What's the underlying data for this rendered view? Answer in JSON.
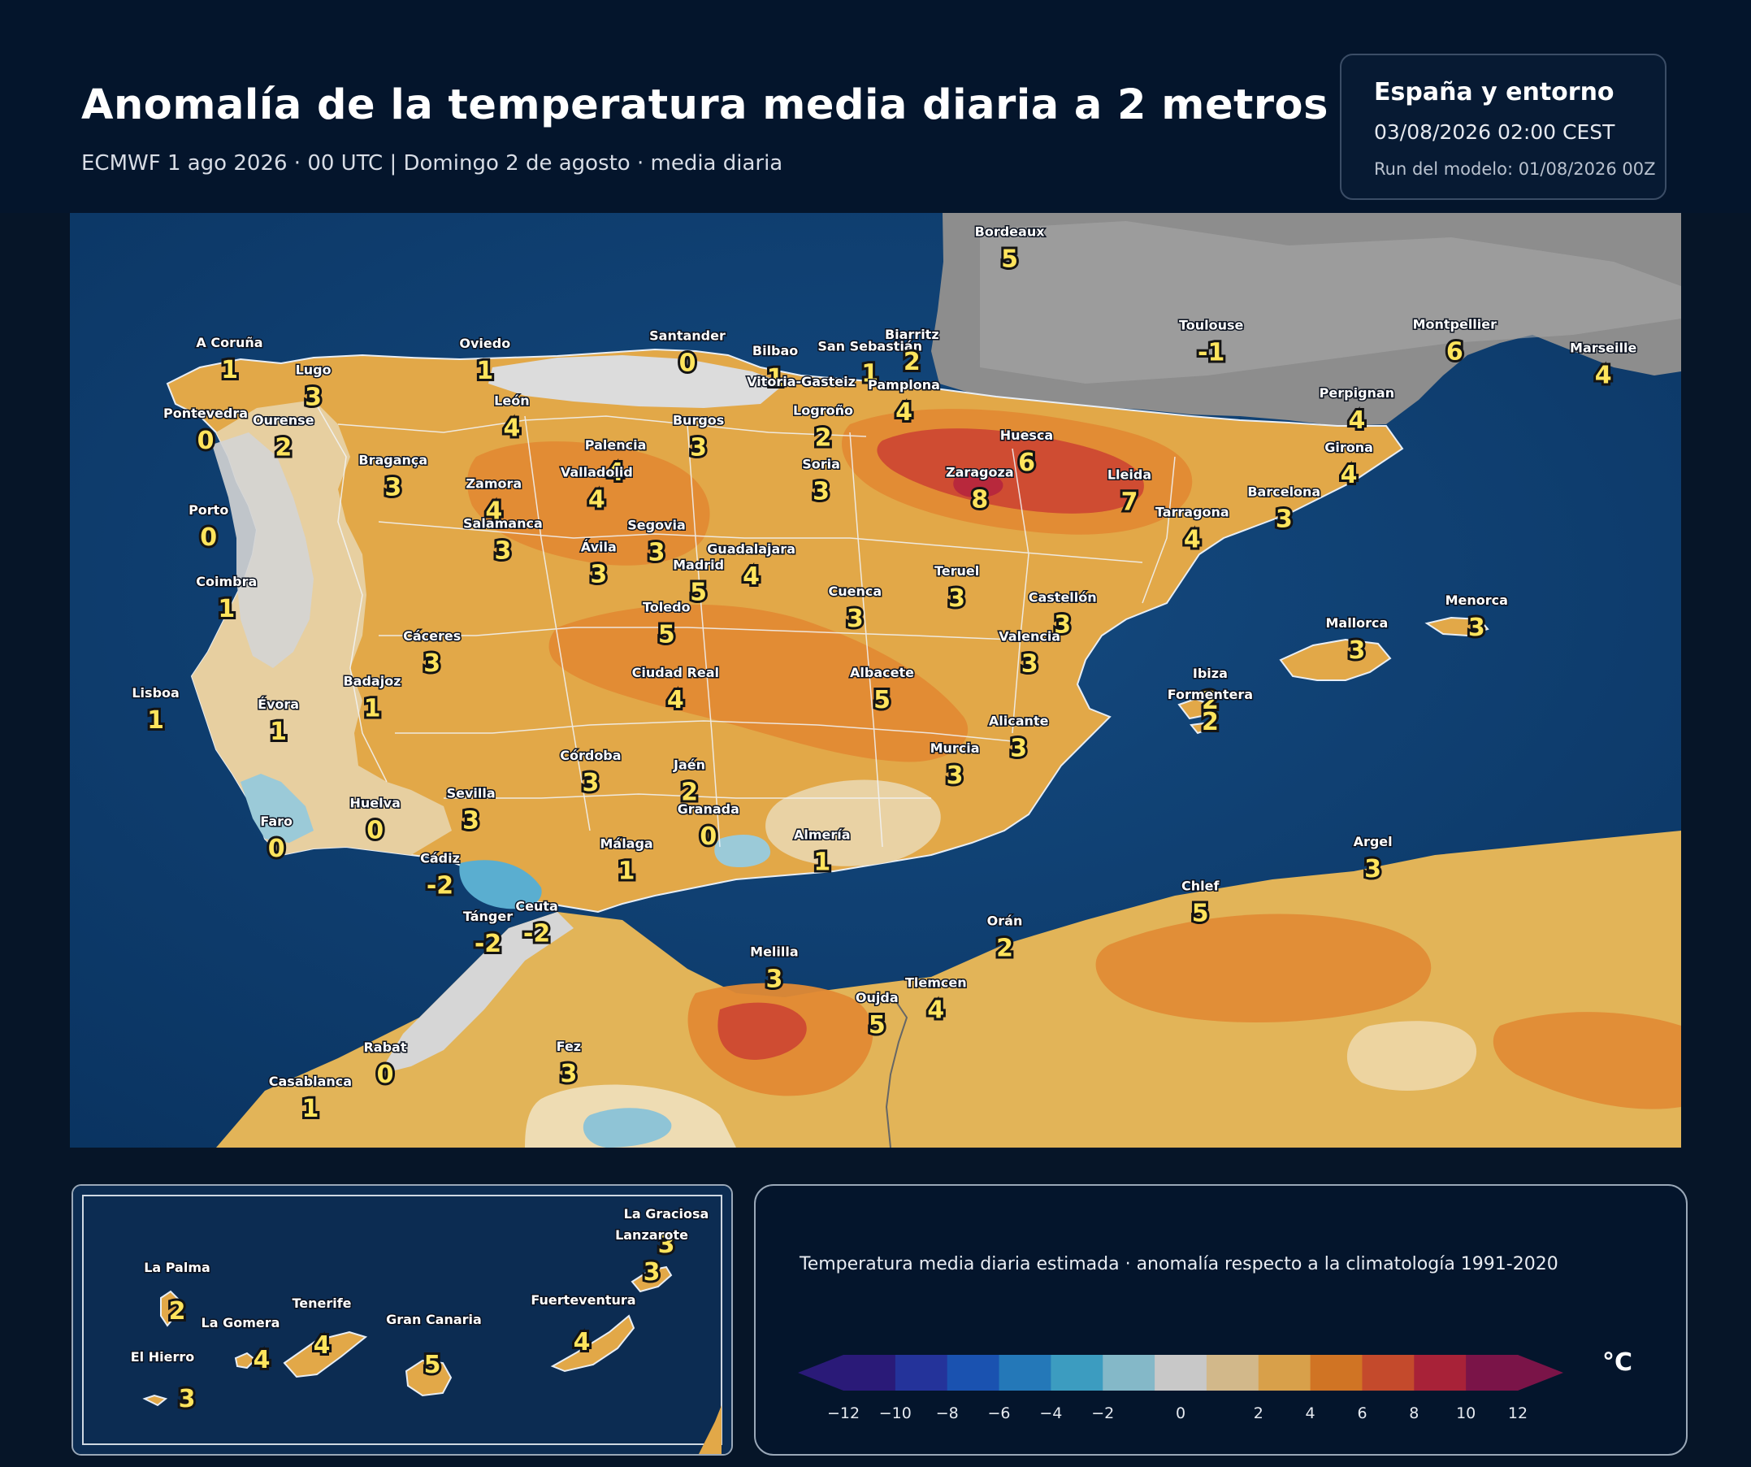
{
  "header": {
    "title": "Anomalía de la temperatura media diaria a 2 metros",
    "subtitle": "ECMWF 1 ago 2026 · 00 UTC  |  Domingo 2 de agosto · media diaria"
  },
  "info": {
    "region": "España y entorno",
    "valid": "03/08/2026  02:00 CEST",
    "run": "Run del modelo: 01/08/2026 00Z"
  },
  "stations": [
    {
      "name": "A Coruña",
      "value": "1",
      "lon": -8.4,
      "lat": 43.37
    },
    {
      "name": "Lugo",
      "value": "3",
      "lon": -7.56,
      "lat": 43.01
    },
    {
      "name": "Oviedo",
      "value": "1",
      "lon": -5.84,
      "lat": 43.36
    },
    {
      "name": "Santander",
      "value": "0",
      "lon": -3.81,
      "lat": 43.46
    },
    {
      "name": "Bilbao",
      "value": "1",
      "lon": -2.93,
      "lat": 43.26
    },
    {
      "name": "San Sebastián",
      "value": "1",
      "lon": -1.98,
      "lat": 43.32
    },
    {
      "name": "Biarritz",
      "value": "2",
      "lon": -1.56,
      "lat": 43.48
    },
    {
      "name": "Bordeaux",
      "value": "5",
      "lon": -0.58,
      "lat": 44.84
    },
    {
      "name": "Toulouse",
      "value": "-1",
      "lon": 1.44,
      "lat": 43.6
    },
    {
      "name": "Montpellier",
      "value": "6",
      "lon": 3.88,
      "lat": 43.61
    },
    {
      "name": "Marseille",
      "value": "4",
      "lon": 5.37,
      "lat": 43.3
    },
    {
      "name": "Vitoria-Gasteiz",
      "value": "",
      "lon": -2.67,
      "lat": 42.85
    },
    {
      "name": "Pamplona",
      "value": "4",
      "lon": -1.64,
      "lat": 42.81
    },
    {
      "name": "Logroño",
      "value": "2",
      "lon": -2.45,
      "lat": 42.47
    },
    {
      "name": "Pontevedra",
      "value": "0",
      "lon": -8.64,
      "lat": 42.43
    },
    {
      "name": "Ourense",
      "value": "2",
      "lon": -7.86,
      "lat": 42.34
    },
    {
      "name": "León",
      "value": "4",
      "lon": -5.57,
      "lat": 42.6
    },
    {
      "name": "Burgos",
      "value": "3",
      "lon": -3.7,
      "lat": 42.34
    },
    {
      "name": "Huesca",
      "value": "6",
      "lon": -0.41,
      "lat": 42.14
    },
    {
      "name": "Perpignan",
      "value": "4",
      "lon": 2.9,
      "lat": 42.7
    },
    {
      "name": "Girona",
      "value": "4",
      "lon": 2.82,
      "lat": 41.98
    },
    {
      "name": "Bragança",
      "value": "3",
      "lon": -6.76,
      "lat": 41.81
    },
    {
      "name": "Palencia",
      "value": "4",
      "lon": -4.53,
      "lat": 42.01
    },
    {
      "name": "Soria",
      "value": "3",
      "lon": -2.47,
      "lat": 41.76
    },
    {
      "name": "Zaragoza",
      "value": "8",
      "lon": -0.88,
      "lat": 41.65
    },
    {
      "name": "Lleida",
      "value": "7",
      "lon": 0.62,
      "lat": 41.62
    },
    {
      "name": "Barcelona",
      "value": "3",
      "lon": 2.17,
      "lat": 41.39
    },
    {
      "name": "Valladolid",
      "value": "4",
      "lon": -4.72,
      "lat": 41.65
    },
    {
      "name": "Zamora",
      "value": "4",
      "lon": -5.75,
      "lat": 41.5
    },
    {
      "name": "Porto",
      "value": "0",
      "lon": -8.61,
      "lat": 41.15
    },
    {
      "name": "Tarragona",
      "value": "4",
      "lon": 1.25,
      "lat": 41.12
    },
    {
      "name": "Salamanca",
      "value": "3",
      "lon": -5.66,
      "lat": 40.97
    },
    {
      "name": "Segovia",
      "value": "3",
      "lon": -4.12,
      "lat": 40.95
    },
    {
      "name": "Ávila",
      "value": "3",
      "lon": -4.7,
      "lat": 40.66
    },
    {
      "name": "Guadalajara",
      "value": "4",
      "lon": -3.17,
      "lat": 40.63
    },
    {
      "name": "Madrid",
      "value": "5",
      "lon": -3.7,
      "lat": 40.42
    },
    {
      "name": "Coimbra",
      "value": "1",
      "lon": -8.43,
      "lat": 40.2
    },
    {
      "name": "Teruel",
      "value": "3",
      "lon": -1.11,
      "lat": 40.34
    },
    {
      "name": "Cuenca",
      "value": "3",
      "lon": -2.13,
      "lat": 40.07
    },
    {
      "name": "Toledo",
      "value": "5",
      "lon": -4.02,
      "lat": 39.86
    },
    {
      "name": "Castellón",
      "value": "3",
      "lon": -0.05,
      "lat": 39.99
    },
    {
      "name": "Menorca",
      "value": "3",
      "lon": 4.1,
      "lat": 39.95
    },
    {
      "name": "Mallorca",
      "value": "3",
      "lon": 2.9,
      "lat": 39.65
    },
    {
      "name": "Valencia",
      "value": "3",
      "lon": -0.38,
      "lat": 39.47
    },
    {
      "name": "Cáceres",
      "value": "3",
      "lon": -6.37,
      "lat": 39.48
    },
    {
      "name": "Ciudad Real",
      "value": "4",
      "lon": -3.93,
      "lat": 38.99
    },
    {
      "name": "Albacete",
      "value": "5",
      "lon": -1.86,
      "lat": 38.99
    },
    {
      "name": "Ibiza",
      "value": "2",
      "lon": 1.43,
      "lat": 38.98
    },
    {
      "name": "Formentera",
      "value": "2",
      "lon": 1.43,
      "lat": 38.7
    },
    {
      "name": "Badajoz",
      "value": "1",
      "lon": -6.97,
      "lat": 38.88
    },
    {
      "name": "Lisboa",
      "value": "1",
      "lon": -9.14,
      "lat": 38.72
    },
    {
      "name": "Évora",
      "value": "1",
      "lon": -7.91,
      "lat": 38.57
    },
    {
      "name": "Alicante",
      "value": "3",
      "lon": -0.49,
      "lat": 38.35
    },
    {
      "name": "Murcia",
      "value": "3",
      "lon": -1.13,
      "lat": 37.99
    },
    {
      "name": "Córdoba",
      "value": "3",
      "lon": -4.78,
      "lat": 37.89
    },
    {
      "name": "Jaén",
      "value": "2",
      "lon": -3.79,
      "lat": 37.77
    },
    {
      "name": "Huelva",
      "value": "0",
      "lon": -6.94,
      "lat": 37.26
    },
    {
      "name": "Sevilla",
      "value": "3",
      "lon": -5.98,
      "lat": 37.39
    },
    {
      "name": "Granada",
      "value": "0",
      "lon": -3.6,
      "lat": 37.18
    },
    {
      "name": "Faro",
      "value": "0",
      "lon": -7.93,
      "lat": 37.02
    },
    {
      "name": "Almería",
      "value": "1",
      "lon": -2.46,
      "lat": 36.84
    },
    {
      "name": "Málaga",
      "value": "1",
      "lon": -4.42,
      "lat": 36.72
    },
    {
      "name": "Cádiz",
      "value": "-2",
      "lon": -6.29,
      "lat": 36.53
    },
    {
      "name": "Argel",
      "value": "3",
      "lon": 3.06,
      "lat": 36.75
    },
    {
      "name": "Chlef",
      "value": "5",
      "lon": 1.33,
      "lat": 36.16
    },
    {
      "name": "Ceuta",
      "value": "-2",
      "lon": -5.32,
      "lat": 35.89
    },
    {
      "name": "Tánger",
      "value": "-2",
      "lon": -5.81,
      "lat": 35.76
    },
    {
      "name": "Orán",
      "value": "2",
      "lon": -0.63,
      "lat": 35.7
    },
    {
      "name": "Melilla",
      "value": "3",
      "lon": -2.94,
      "lat": 35.29
    },
    {
      "name": "Tlemcen",
      "value": "4",
      "lon": -1.32,
      "lat": 34.88
    },
    {
      "name": "Oujda",
      "value": "5",
      "lon": -1.91,
      "lat": 34.68
    },
    {
      "name": "Fez",
      "value": "3",
      "lon": -5.0,
      "lat": 34.03
    },
    {
      "name": "Rabat",
      "value": "0",
      "lon": -6.84,
      "lat": 34.02
    },
    {
      "name": "Casablanca",
      "value": "1",
      "lon": -7.59,
      "lat": 33.57
    }
  ],
  "canary_islands": [
    {
      "name": "La Graciosa",
      "value": "3"
    },
    {
      "name": "Lanzarote",
      "value": "3"
    },
    {
      "name": "La Palma",
      "value": "2"
    },
    {
      "name": "Tenerife",
      "value": "4"
    },
    {
      "name": "La Gomera",
      "value": "4"
    },
    {
      "name": "Gran Canaria",
      "value": "5"
    },
    {
      "name": "Fuerteventura",
      "value": "4"
    },
    {
      "name": "El Hierro",
      "value": "3"
    }
  ],
  "legend": {
    "caption": "Temperatura media diaria estimada · anomalía respecto a la climatología 1991-2020",
    "unit": "°C",
    "ticks": [
      "−12",
      "−10",
      "−8",
      "−6",
      "−4",
      "−2",
      "0",
      "2",
      "4",
      "6",
      "8",
      "10",
      "12"
    ],
    "colors": [
      "#2a1a78",
      "#24339a",
      "#1a52b0",
      "#2478b8",
      "#3c9cc0",
      "#84b8c8",
      "#c8c8c8",
      "#d2b88a",
      "#d8a04a",
      "#d07424",
      "#c44a2c",
      "#a82238",
      "#7a1448"
    ],
    "under_color": "#2a1a78",
    "over_color": "#7a1448"
  },
  "colors": {
    "sea": "#0d3c6c",
    "france": "#8a8a8a",
    "accent_value": "#ffe45c"
  }
}
